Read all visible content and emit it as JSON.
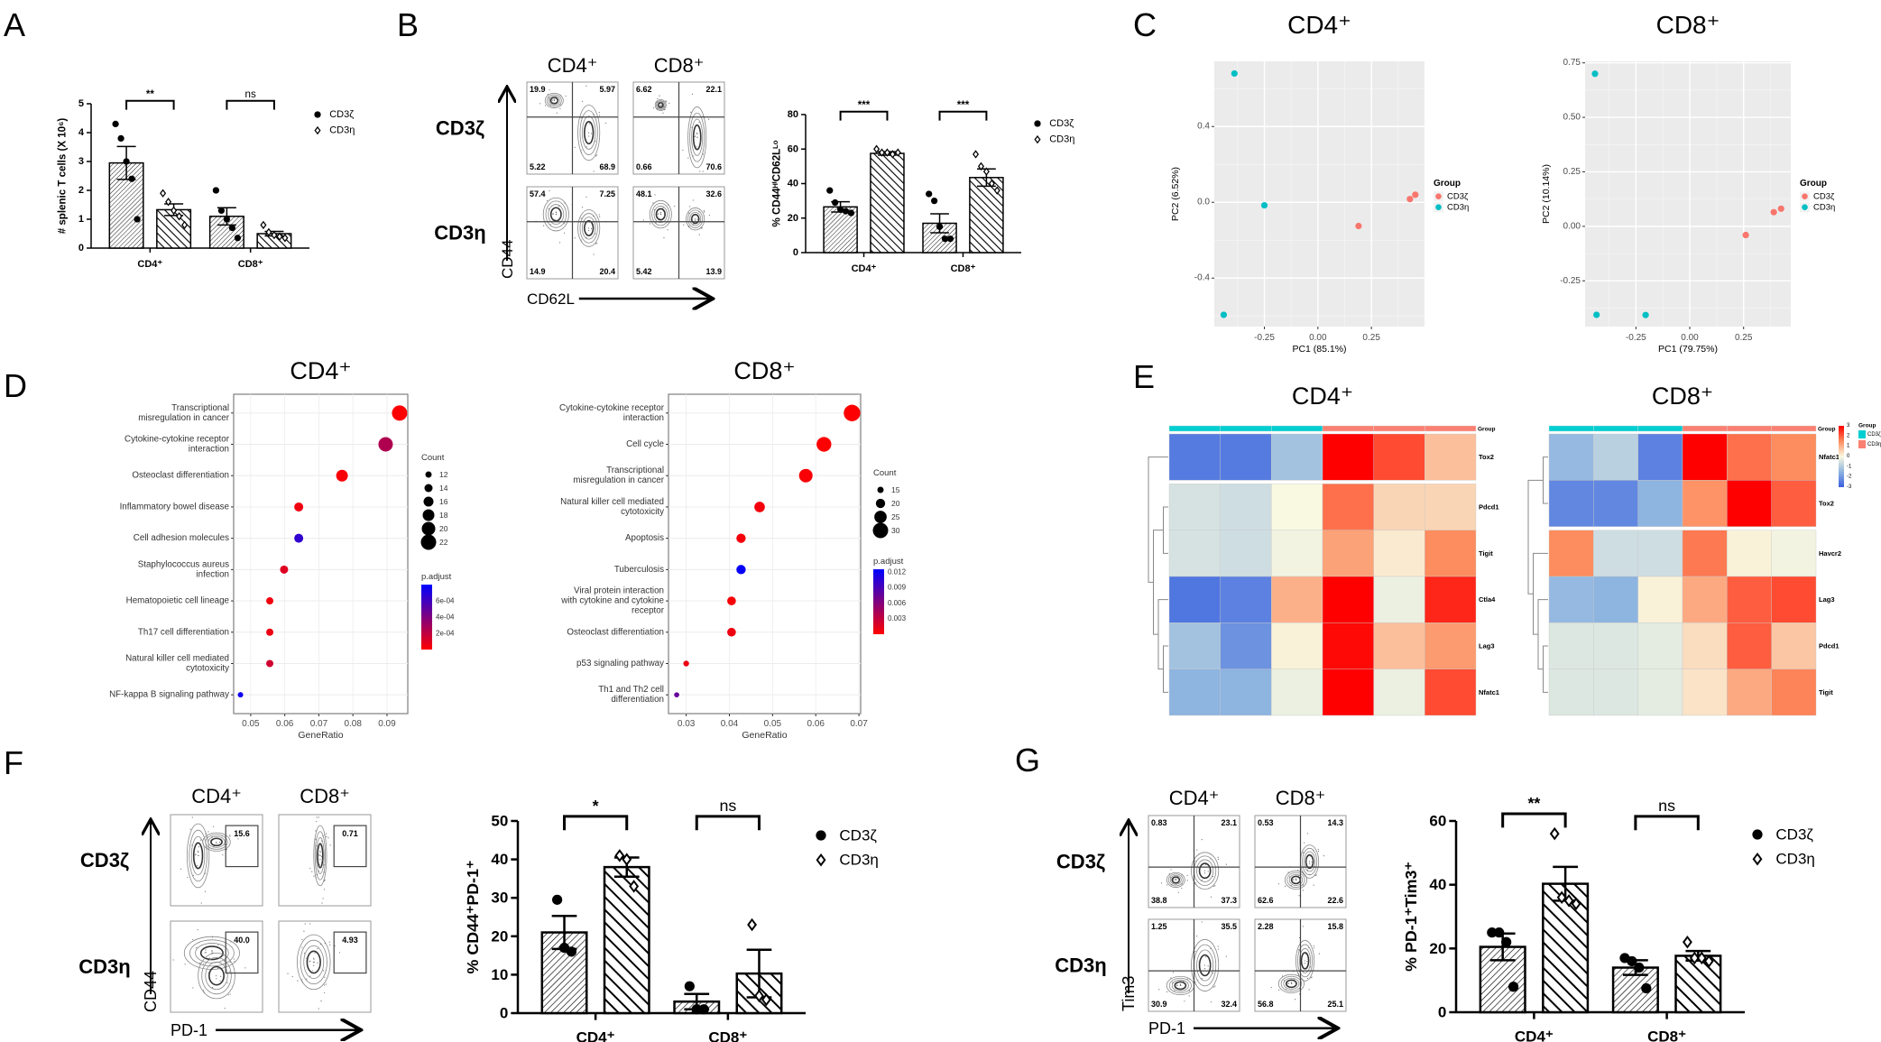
{
  "panel_labels": [
    "A",
    "B",
    "C",
    "D",
    "E",
    "F",
    "G"
  ],
  "chart_data": [
    {
      "id": "A",
      "type": "bar",
      "categories": [
        "CD4⁺",
        "CD8⁺"
      ],
      "ylabel": "# splenic T cells (X 10⁶)",
      "ylim": [
        0,
        5
      ],
      "yticks": [
        0,
        1,
        2,
        3,
        4,
        5
      ],
      "significance": [
        "**",
        "ns"
      ],
      "series": [
        {
          "name": "CD3ζ",
          "values": [
            2.95,
            1.1
          ],
          "errors": [
            0.57,
            0.3
          ],
          "points": [
            [
              4.3,
              3.8,
              3.0,
              2.4,
              1.0
            ],
            [
              2.0,
              1.3,
              1.0,
              0.7,
              0.35
            ]
          ]
        },
        {
          "name": "CD3η",
          "values": [
            1.33,
            0.5
          ],
          "errors": [
            0.2,
            0.08
          ],
          "points": [
            [
              1.9,
              1.6,
              1.3,
              1.1,
              0.8
            ],
            [
              0.8,
              0.55,
              0.45,
              0.4,
              0.35
            ]
          ]
        }
      ]
    },
    {
      "id": "B",
      "type": "bar",
      "categories": [
        "CD4⁺",
        "CD8⁺"
      ],
      "ylabel": "% CD44ᴴⁱCD62Lᴸᵒ",
      "ylim": [
        0,
        80
      ],
      "yticks": [
        0,
        20,
        40,
        60,
        80
      ],
      "significance": [
        "***",
        "***"
      ],
      "series": [
        {
          "name": "CD3ζ",
          "values": [
            26.5,
            17
          ],
          "errors": [
            3,
            5.5
          ],
          "points": [
            [
              36,
              29,
              25,
              24,
              23
            ],
            [
              34,
              30,
              15,
              8,
              8
            ]
          ]
        },
        {
          "name": "CD3η",
          "values": [
            57.5,
            43.5
          ],
          "errors": [
            1,
            5
          ],
          "points": [
            [
              60,
              58,
              58,
              57,
              58
            ],
            [
              57,
              50,
              47,
              40,
              36
            ]
          ]
        }
      ]
    },
    {
      "id": "C-CD4",
      "type": "scatter",
      "title": "CD4⁺",
      "xlabel": "PC1 (85.1%)",
      "ylabel": "PC2 (6.52%)",
      "xlim": [
        -0.484,
        0.498
      ],
      "ylim": [
        -0.656,
        0.744
      ],
      "xticks": [
        -0.25,
        0,
        0.25
      ],
      "xtick_labels": [
        "-0.25",
        "0.00",
        "0.25"
      ],
      "yticks": [
        -0.4,
        0,
        0.4
      ],
      "ytick_labels": [
        "-0.4",
        "0.0",
        "0.4"
      ],
      "legend_title": "Group",
      "series": [
        {
          "name": "CD3ζ",
          "color": "#f8766d",
          "points": [
            [
              0.19,
              -0.125
            ],
            [
              0.43,
              0.017
            ],
            [
              0.455,
              0.04
            ]
          ]
        },
        {
          "name": "CD3η",
          "color": "#00bfc4",
          "points": [
            [
              -0.39,
              0.68
            ],
            [
              -0.25,
              -0.016
            ],
            [
              -0.44,
              -0.594
            ]
          ]
        }
      ]
    },
    {
      "id": "C-CD8",
      "type": "scatter",
      "title": "CD8⁺",
      "xlabel": "PC1 (79.75%)",
      "ylabel": "PC2 (10.14%)",
      "xlim": [
        -0.486,
        0.469
      ],
      "ylim": [
        -0.46,
        0.757
      ],
      "xticks": [
        -0.25,
        0,
        0.25
      ],
      "xtick_labels": [
        "-0.25",
        "0.00",
        "0.25"
      ],
      "yticks": [
        -0.25,
        0,
        0.25,
        0.5,
        0.75
      ],
      "ytick_labels": [
        "-0.25",
        "0.00",
        "0.25",
        "0.50",
        "0.75"
      ],
      "legend_title": "Group",
      "series": [
        {
          "name": "CD3ζ",
          "color": "#f8766d",
          "points": [
            [
              0.26,
              -0.04
            ],
            [
              0.39,
              0.065
            ],
            [
              0.424,
              0.081
            ]
          ]
        },
        {
          "name": "CD3η",
          "color": "#00bfc4",
          "points": [
            [
              -0.44,
              0.7
            ],
            [
              -0.433,
              -0.406
            ],
            [
              -0.205,
              -0.407
            ]
          ]
        }
      ]
    },
    {
      "id": "D-CD4",
      "type": "scatter",
      "title": "CD4⁺",
      "xlabel": "GeneRatio",
      "xlim": [
        0.045,
        0.0961
      ],
      "xticks": [
        0.05,
        0.06,
        0.07,
        0.08,
        0.09
      ],
      "terms": [
        [
          "Transcriptional",
          "misregulation in cancer"
        ],
        [
          "Cytokine-cytokine receptor",
          "interaction"
        ],
        [
          "Osteoclast differentiation"
        ],
        [
          "Inflammatory bowel disease"
        ],
        [
          "Cell adhesion molecules"
        ],
        [
          "Staphylococcus aureus",
          "infection"
        ],
        [
          "Hematopoietic cell lineage"
        ],
        [
          "Th17 cell differentiation"
        ],
        [
          "Natural killer cell mediated",
          "cytotoxicity"
        ],
        [
          "NF-kappa B signaling pathway"
        ]
      ],
      "gene_ratio": [
        0.0937,
        0.0896,
        0.0768,
        0.0641,
        0.0641,
        0.0598,
        0.0556,
        0.0556,
        0.0556,
        0.047
      ],
      "count": [
        22,
        21,
        18,
        15,
        15,
        14,
        13,
        13,
        13,
        11
      ],
      "p_adjust": [
        1e-05,
        0.00025,
        2e-05,
        5e-05,
        0.00065,
        0.0001,
        4e-05,
        6e-05,
        0.00015,
        0.00075
      ],
      "count_legend": {
        "title": "Count",
        "values": [
          12,
          14,
          16,
          18,
          20,
          22
        ]
      },
      "p_legend": {
        "title": "p.adjust",
        "range": [
          0,
          0.0008
        ],
        "ticks": [
          0.0002,
          0.0004,
          0.0006
        ],
        "labels": [
          "2e-04",
          "4e-04",
          "6e-04"
        ]
      }
    },
    {
      "id": "D-CD8",
      "type": "scatter",
      "title": "CD8⁺",
      "xlabel": "GeneRatio",
      "xlim": [
        0.0259,
        0.0704
      ],
      "xticks": [
        0.03,
        0.04,
        0.05,
        0.06,
        0.07
      ],
      "terms": [
        [
          "Cytokine-cytokine receptor",
          "interaction"
        ],
        [
          "Cell cycle"
        ],
        [
          "Transcriptional",
          "misregulation in cancer"
        ],
        [
          "Natural killer cell mediated",
          "cytotoxicity"
        ],
        [
          "Apoptosis"
        ],
        [
          "Tuberculosis"
        ],
        [
          "Viral protein interaction",
          "with cytokine and cytokine",
          "receptor"
        ],
        [
          "Osteoclast differentiation"
        ],
        [
          "p53 signaling pathway"
        ],
        [
          "Th1 and Th2 cell",
          "differentiation"
        ]
      ],
      "gene_ratio": [
        0.0684,
        0.0619,
        0.0577,
        0.047,
        0.0427,
        0.0427,
        0.0405,
        0.0405,
        0.03,
        0.0278
      ],
      "count": [
        32,
        29,
        27,
        22,
        20,
        20,
        19,
        19,
        14,
        13
      ],
      "p_adjust": [
        0.0001,
        0.0001,
        0.0003,
        0.0006,
        0.0005,
        0.0122,
        0.0003,
        0.0008,
        0.001,
        0.0075
      ],
      "count_legend": {
        "title": "Count",
        "values": [
          15,
          20,
          25,
          30
        ]
      },
      "p_legend": {
        "title": "p.adjust",
        "range": [
          0,
          0.0125
        ],
        "ticks": [
          0.003,
          0.006,
          0.009,
          0.012
        ],
        "labels": [
          "0.003",
          "0.006",
          "0.009",
          "0.012"
        ]
      }
    },
    {
      "id": "E-CD4",
      "type": "heatmap",
      "title": "CD4⁺",
      "group_label": "Group",
      "groups": [
        "CD3ζ",
        "CD3ζ",
        "CD3ζ",
        "CD3η",
        "CD3η",
        "CD3η"
      ],
      "group_colors": {
        "CD3ζ": "#00ced1",
        "CD3η": "#fa8072"
      },
      "rows": [
        "Tox2",
        "Pdcd1",
        "Tigit",
        "Ctla4",
        "Lag3",
        "Nfatc1"
      ],
      "values": [
        [
          -2.5,
          -2.5,
          -1.2,
          3,
          2.2,
          0.8
        ],
        [
          -0.5,
          -0.6,
          0,
          1.8,
          0.5,
          0.5
        ],
        [
          -0.5,
          -0.6,
          -0.1,
          1.2,
          0.2,
          1.5
        ],
        [
          -2.6,
          -2.4,
          1.0,
          3,
          -0.2,
          2.6
        ],
        [
          -1.2,
          -2.1,
          0.1,
          2.9,
          0.8,
          1.3
        ],
        [
          -1.5,
          -1.5,
          -0.2,
          3,
          -0.2,
          2.2
        ]
      ]
    },
    {
      "id": "E-CD8",
      "type": "heatmap",
      "title": "CD8⁺",
      "group_label": "Group",
      "groups": [
        "CD3ζ",
        "CD3ζ",
        "CD3ζ",
        "CD3η",
        "CD3η",
        "CD3η"
      ],
      "group_colors": {
        "CD3ζ": "#00ced1",
        "CD3η": "#fa8072"
      },
      "rows": [
        "Nfatc1",
        "Tox2",
        "Havcr2",
        "Lag3",
        "Pdcd1",
        "Tigit"
      ],
      "values": [
        [
          -1.4,
          -0.9,
          -2.4,
          3,
          1.8,
          1.5
        ],
        [
          -2.3,
          -2.3,
          -1.5,
          1.4,
          3,
          2.0
        ],
        [
          1.5,
          -0.6,
          -0.6,
          1.7,
          0.1,
          -0.1
        ],
        [
          -1.4,
          -1.5,
          0.1,
          1.1,
          2.0,
          2.2
        ],
        [
          -0.4,
          -0.4,
          -0.3,
          0.4,
          2.0,
          0.7
        ],
        [
          -0.4,
          -0.4,
          -0.3,
          0.3,
          1.1,
          1.6
        ]
      ],
      "color_legend": {
        "ticks": [
          3,
          2,
          1,
          0,
          -1,
          -2,
          -3
        ]
      },
      "group_legend": {
        "title": "Group",
        "entries": [
          "CD3ζ",
          "CD3η"
        ]
      }
    },
    {
      "id": "F",
      "type": "bar",
      "categories": [
        "CD4⁺",
        "CD8⁺"
      ],
      "ylabel": "% CD44⁺PD-1⁺",
      "ylim": [
        0,
        50
      ],
      "yticks": [
        0,
        10,
        20,
        30,
        40,
        50
      ],
      "significance": [
        "*",
        "ns"
      ],
      "series": [
        {
          "name": "CD3ζ",
          "values": [
            21,
            3
          ],
          "errors": [
            4.3,
            2
          ],
          "points": [
            [
              29.5,
              17,
              16
            ],
            [
              7,
              1,
              1
            ]
          ]
        },
        {
          "name": "CD3η",
          "values": [
            38,
            10.3
          ],
          "errors": [
            2.5,
            6.2
          ],
          "points": [
            [
              41,
              40,
              33
            ],
            [
              23,
              4.5,
              3.5
            ]
          ]
        }
      ]
    },
    {
      "id": "G",
      "type": "bar",
      "categories": [
        "CD4⁺",
        "CD8⁺"
      ],
      "ylabel": "% PD-1⁺Tim3⁺",
      "ylim": [
        0,
        60
      ],
      "yticks": [
        0,
        20,
        40,
        60
      ],
      "significance": [
        "**",
        "ns"
      ],
      "series": [
        {
          "name": "CD3ζ",
          "values": [
            20.5,
            14
          ],
          "errors": [
            4.2,
            2.3
          ],
          "points": [
            [
              25,
              25,
              22,
              8
            ],
            [
              17,
              16,
              14,
              7.5
            ]
          ]
        },
        {
          "name": "CD3η",
          "values": [
            40.3,
            17.7
          ],
          "errors": [
            5.3,
            1.5
          ],
          "points": [
            [
              56,
              36,
              35,
              34
            ],
            [
              22,
              17,
              17,
              16
            ]
          ]
        }
      ]
    }
  ],
  "flow_plots": [
    {
      "id": "B",
      "columns": [
        "CD4⁺",
        "CD8⁺"
      ],
      "rows": [
        "CD3ζ",
        "CD3η"
      ],
      "y_axis": "CD44",
      "x_axis": "CD62L",
      "type": "quadrant",
      "values": [
        [
          "19.9",
          "5.97",
          "5.22",
          "68.9"
        ],
        [
          "6.62",
          "22.1",
          "0.66",
          "70.6"
        ],
        [
          "57.4",
          "7.25",
          "14.9",
          "20.4"
        ],
        [
          "48.1",
          "32.6",
          "5.42",
          "13.9"
        ]
      ]
    },
    {
      "id": "F",
      "columns": [
        "CD4⁺",
        "CD8⁺"
      ],
      "rows": [
        "CD3ζ",
        "CD3η"
      ],
      "y_axis": "CD44",
      "x_axis": "PD-1",
      "type": "gate",
      "values": [
        "15.6",
        "0.71",
        "40.0",
        "4.93"
      ]
    },
    {
      "id": "G",
      "columns": [
        "CD4⁺",
        "CD8⁺"
      ],
      "rows": [
        "CD3ζ",
        "CD3η"
      ],
      "y_axis": "Tim3",
      "x_axis": "PD-1",
      "type": "quadrant",
      "values": [
        [
          "0.83",
          "23.1",
          "38.8",
          "37.3"
        ],
        [
          "0.53",
          "14.3",
          "62.6",
          "22.6"
        ],
        [
          "1.25",
          "35.5",
          "30.9",
          "32.4"
        ],
        [
          "2.28",
          "15.8",
          "56.8",
          "25.1"
        ]
      ]
    }
  ]
}
